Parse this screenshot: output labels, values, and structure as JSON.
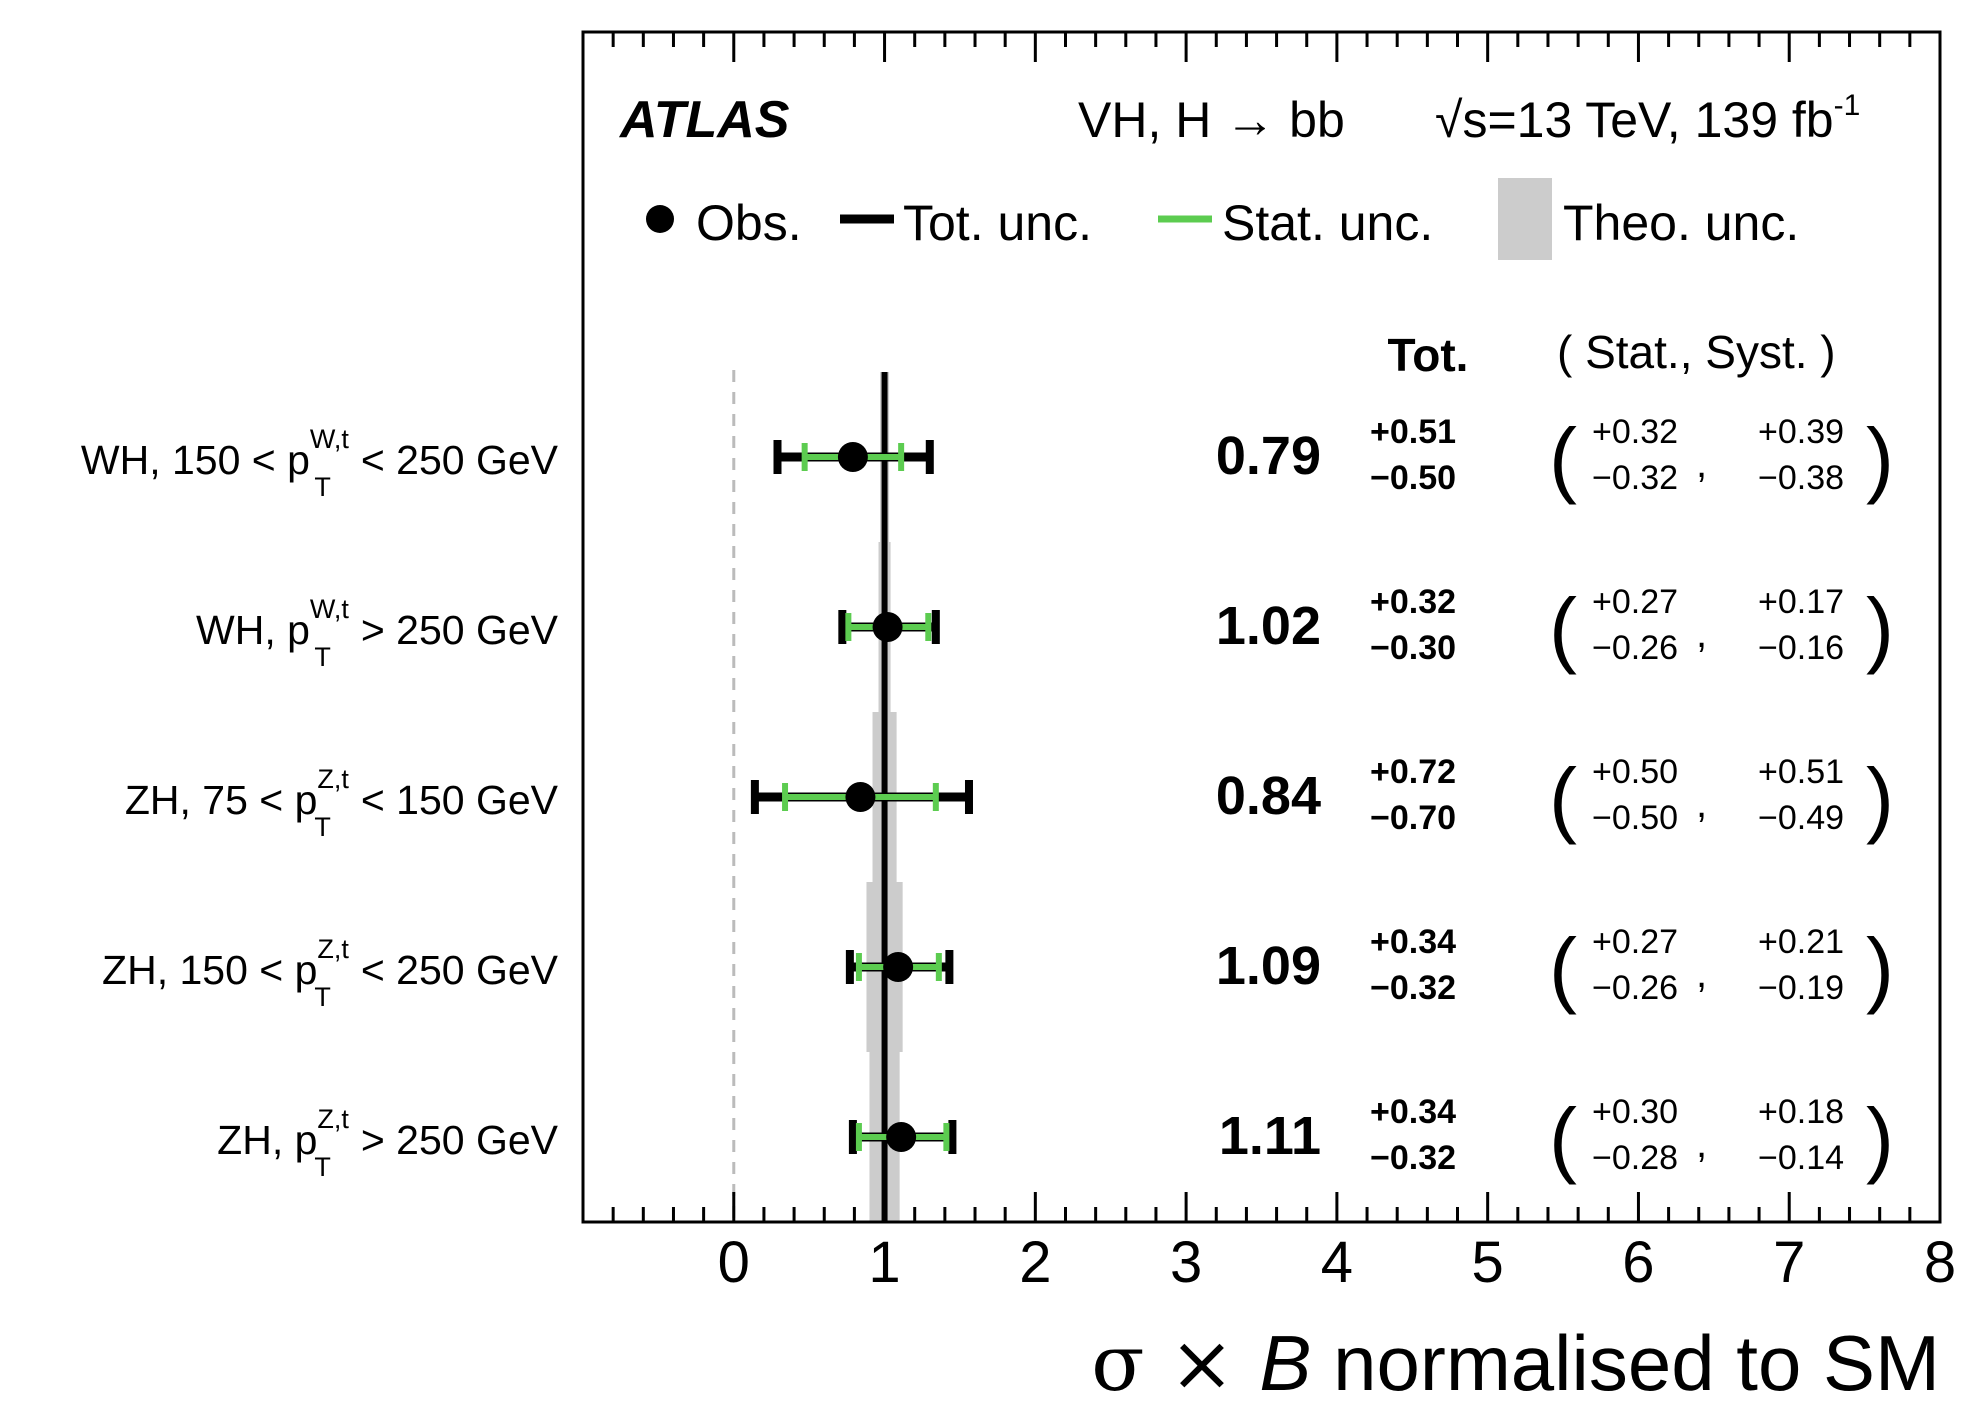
{
  "chart_data": {
    "type": "scatter",
    "experiment": "ATLAS",
    "process": "VH, H → bb",
    "energy": "√s=13 TeV, 139 fb",
    "lumi_exponent": "-1",
    "xlabel": {
      "sym": "σ × ",
      "B": "B",
      "rest": " normalised to SM"
    },
    "xlim": [
      -1,
      8
    ],
    "xticks": [
      "0",
      "1",
      "2",
      "3",
      "4",
      "5",
      "6",
      "7",
      "8"
    ],
    "sm_reference": 1,
    "zero_line": 0,
    "legend": {
      "obs": "Obs.",
      "tot": "Tot. unc.",
      "stat": "Stat. unc.",
      "theo": "Theo. unc."
    },
    "column_headers": {
      "tot": "Tot.",
      "stat_syst": "( Stat.,  Syst. )"
    },
    "colors": {
      "obs": "#000000",
      "tot": "#000000",
      "stat": "#5ccc50",
      "theo": "#cccccc",
      "zero_line": "#bbbbbb"
    },
    "categories": [
      {
        "label": {
          "pre": "WH, 150 < p",
          "sup": "W,t",
          "sub": "T",
          "post": " < 250 GeV"
        },
        "value": 0.79,
        "value_label": "0.79",
        "tot_up": 0.51,
        "tot_down": 0.5,
        "tot_up_label": "+0.51",
        "tot_down_label": "−0.50",
        "stat_up": 0.32,
        "stat_down": 0.32,
        "stat_up_label": "+0.32",
        "stat_down_label": "−0.32",
        "syst_up_label": "+0.39",
        "syst_down_label": "−0.38",
        "theo_low": 0.97,
        "theo_high": 1.03
      },
      {
        "label": {
          "pre": "WH, p",
          "sup": "W,t",
          "sub": "T",
          "post": " > 250 GeV"
        },
        "value": 1.02,
        "value_label": "1.02",
        "tot_up": 0.32,
        "tot_down": 0.3,
        "tot_up_label": "+0.32",
        "tot_down_label": "−0.30",
        "stat_up": 0.27,
        "stat_down": 0.26,
        "stat_up_label": "+0.27",
        "stat_down_label": "−0.26",
        "syst_up_label": "+0.17",
        "syst_down_label": "−0.16",
        "theo_low": 0.96,
        "theo_high": 1.04
      },
      {
        "label": {
          "pre": "ZH, 75 < p",
          "sup": "Z,t",
          "sub": "T",
          "post": " < 150 GeV"
        },
        "value": 0.84,
        "value_label": "0.84",
        "tot_up": 0.72,
        "tot_down": 0.7,
        "tot_up_label": "+0.72",
        "tot_down_label": "−0.70",
        "stat_up": 0.5,
        "stat_down": 0.5,
        "stat_up_label": "+0.50",
        "stat_down_label": "−0.50",
        "syst_up_label": "+0.51",
        "syst_down_label": "−0.49",
        "theo_low": 0.92,
        "theo_high": 1.08
      },
      {
        "label": {
          "pre": "ZH, 150 < p",
          "sup": "Z,t",
          "sub": "T",
          "post": " < 250 GeV"
        },
        "value": 1.09,
        "value_label": "1.09",
        "tot_up": 0.34,
        "tot_down": 0.32,
        "tot_up_label": "+0.34",
        "tot_down_label": "−0.32",
        "stat_up": 0.27,
        "stat_down": 0.26,
        "stat_up_label": "+0.27",
        "stat_down_label": "−0.26",
        "syst_up_label": "+0.21",
        "syst_down_label": "−0.19",
        "theo_low": 0.88,
        "theo_high": 1.12
      },
      {
        "label": {
          "pre": "ZH, p",
          "sup": "Z,t",
          "sub": "T",
          "post": " > 250 GeV"
        },
        "value": 1.11,
        "value_label": "1.11",
        "tot_up": 0.34,
        "tot_down": 0.32,
        "tot_up_label": "+0.34",
        "tot_down_label": "−0.32",
        "stat_up": 0.3,
        "stat_down": 0.28,
        "stat_up_label": "+0.30",
        "stat_down_label": "−0.28",
        "syst_up_label": "+0.18",
        "syst_down_label": "−0.14",
        "theo_low": 0.9,
        "theo_high": 1.1
      }
    ]
  }
}
